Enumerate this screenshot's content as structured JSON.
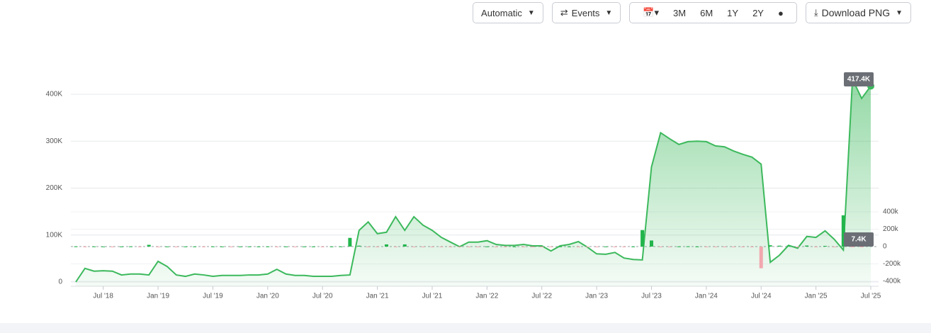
{
  "toolbar": {
    "mode": "Automatic",
    "events": "Events",
    "ranges": [
      "3M",
      "6M",
      "1Y",
      "2Y"
    ],
    "download": "Download PNG"
  },
  "chart_data": {
    "type": "area",
    "categories": [
      "2018-04",
      "2018-05",
      "2018-06",
      "2018-07",
      "2018-08",
      "2018-09",
      "2018-10",
      "2018-11",
      "2018-12",
      "2019-01",
      "2019-02",
      "2019-03",
      "2019-04",
      "2019-05",
      "2019-06",
      "2019-07",
      "2019-08",
      "2019-09",
      "2019-10",
      "2019-11",
      "2019-12",
      "2020-01",
      "2020-02",
      "2020-03",
      "2020-04",
      "2020-05",
      "2020-06",
      "2020-07",
      "2020-08",
      "2020-09",
      "2020-10",
      "2020-11",
      "2020-12",
      "2021-01",
      "2021-02",
      "2021-03",
      "2021-04",
      "2021-05",
      "2021-06",
      "2021-07",
      "2021-08",
      "2021-09",
      "2021-10",
      "2021-11",
      "2021-12",
      "2022-01",
      "2022-02",
      "2022-03",
      "2022-04",
      "2022-05",
      "2022-06",
      "2022-07",
      "2022-08",
      "2022-09",
      "2022-10",
      "2022-11",
      "2022-12",
      "2023-01",
      "2023-02",
      "2023-03",
      "2023-04",
      "2023-05",
      "2023-06",
      "2023-07",
      "2023-08",
      "2023-09",
      "2023-10",
      "2023-11",
      "2023-12",
      "2024-01",
      "2024-02",
      "2024-03",
      "2024-04",
      "2024-05",
      "2024-06",
      "2024-07",
      "2024-08",
      "2024-09",
      "2024-10",
      "2024-11",
      "2024-12",
      "2025-01",
      "2025-02",
      "2025-03",
      "2025-04",
      "2025-05",
      "2025-06",
      "2025-07"
    ],
    "series": [
      {
        "type": "area",
        "color": "#3cb95c",
        "values": [
          0,
          29000,
          23000,
          24000,
          23000,
          15000,
          17000,
          17000,
          15000,
          44000,
          33000,
          15000,
          12000,
          17000,
          15000,
          12000,
          14000,
          14000,
          14000,
          15000,
          15000,
          17000,
          27000,
          17000,
          14000,
          14000,
          12000,
          12000,
          12000,
          14000,
          15000,
          110000,
          128000,
          103000,
          106000,
          139000,
          110000,
          139000,
          121000,
          110000,
          95000,
          85000,
          75000,
          85000,
          85000,
          88000,
          80000,
          78000,
          78000,
          80000,
          77000,
          77000,
          66000,
          77000,
          80000,
          86000,
          74000,
          60000,
          59000,
          63000,
          51000,
          48000,
          47000,
          245000,
          318000,
          305000,
          293000,
          299000,
          300000,
          299000,
          290000,
          288000,
          279000,
          272000,
          266000,
          251000,
          42000,
          57000,
          78000,
          72000,
          97000,
          95000,
          109000,
          91000,
          68000,
          432000,
          391000,
          417400
        ]
      },
      {
        "type": "bar",
        "axis": "y2",
        "color": "#22b54c",
        "negative_color": "#f2a7ae",
        "values": [
          2000,
          -1000,
          1500,
          1000,
          -1500,
          1000,
          2000,
          -1000,
          20000,
          -2000,
          1000,
          -1500,
          1000,
          1000,
          -1000,
          1500,
          1000,
          -1000,
          1000,
          1500,
          1000,
          1500,
          -2000,
          1000,
          -1000,
          1000,
          1000,
          -1000,
          1000,
          1500,
          100000,
          10000,
          -8000,
          -5000,
          25000,
          -6000,
          25000,
          -4000,
          -3000,
          -5000,
          -4000,
          -6000,
          -3000,
          -4000,
          -2000,
          1500,
          -3000,
          -2000,
          1000,
          -2000,
          -1000,
          -3000,
          -2000,
          1500,
          1000,
          -2000,
          -3000,
          -3000,
          1000,
          -2000,
          -1000,
          1000,
          190000,
          70000,
          -2000,
          -3000,
          2000,
          3000,
          1000,
          -2000,
          -3000,
          -2000,
          -3000,
          -2000,
          -3000,
          -250000,
          15000,
          10000,
          12000,
          -3000,
          12000,
          -2000,
          8000,
          -4000,
          360000,
          -6000,
          -8000,
          7400
        ]
      }
    ],
    "annotations": [
      {
        "series": 0,
        "index": 87,
        "text": "417.4K"
      },
      {
        "series": 1,
        "index": 87,
        "text": "7.4K"
      }
    ],
    "ylim": [
      0,
      400000
    ],
    "yticks": [
      0,
      {
        "value": 100000,
        "label": "100K"
      },
      {
        "value": 200000,
        "label": "200K"
      },
      {
        "value": 300000,
        "label": "300K"
      },
      {
        "value": 400000,
        "label": "400K"
      }
    ],
    "y2lim": [
      -400000,
      400000
    ],
    "y2ticks": [
      {
        "value": 400000,
        "label": "400k"
      },
      {
        "value": 200000,
        "label": "200k"
      },
      0,
      {
        "value": -200000,
        "label": "-200k"
      },
      {
        "value": -400000,
        "label": "-400k"
      }
    ],
    "xticks": [
      {
        "value": "2018-07",
        "label": "Jul '18"
      },
      {
        "value": "2019-01",
        "label": "Jan '19"
      },
      {
        "value": "2019-07",
        "label": "Jul '19"
      },
      {
        "value": "2020-01",
        "label": "Jan '20"
      },
      {
        "value": "2020-07",
        "label": "Jul '20"
      },
      {
        "value": "2021-01",
        "label": "Jan '21"
      },
      {
        "value": "2021-07",
        "label": "Jul '21"
      },
      {
        "value": "2022-01",
        "label": "Jan '22"
      },
      {
        "value": "2022-07",
        "label": "Jul '22"
      },
      {
        "value": "2023-01",
        "label": "Jan '23"
      },
      {
        "value": "2023-07",
        "label": "Jul '23"
      },
      {
        "value": "2024-01",
        "label": "Jan '24"
      },
      {
        "value": "2024-07",
        "label": "Jul '24"
      },
      {
        "value": "2025-01",
        "label": "Jan '25"
      },
      {
        "value": "2025-07",
        "label": "Jul '25"
      }
    ],
    "grid": true
  }
}
